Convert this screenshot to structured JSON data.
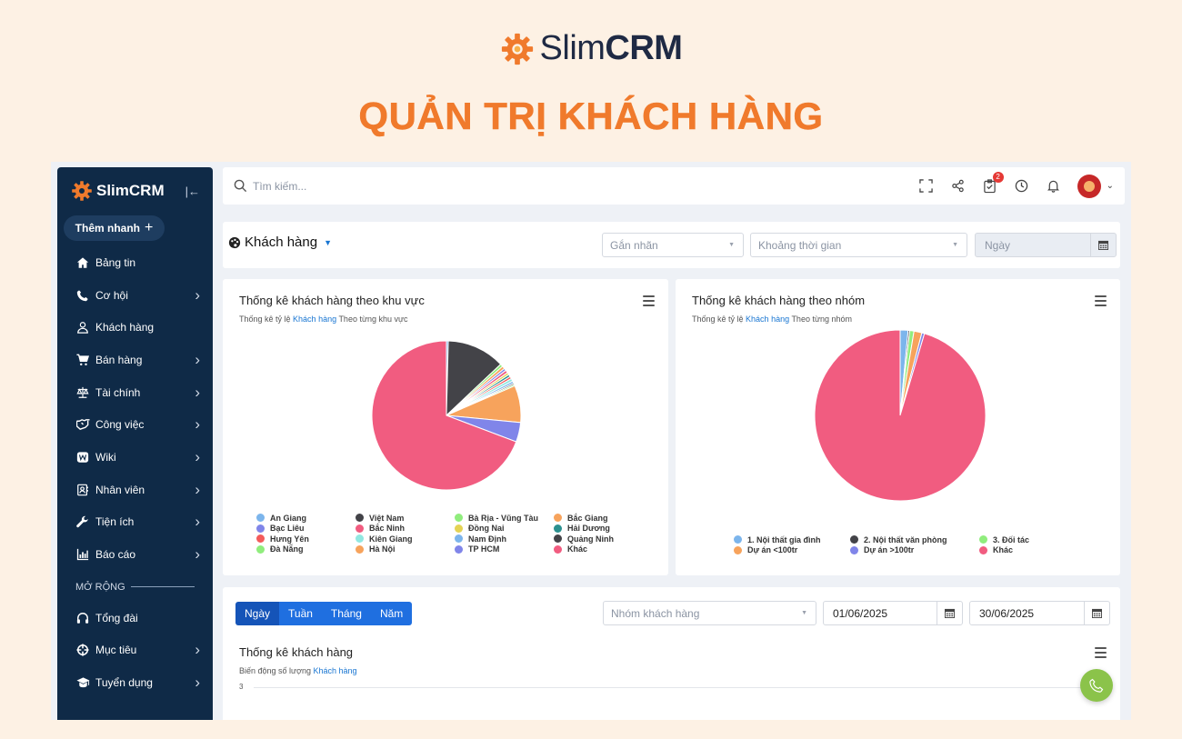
{
  "banner": {
    "brand_light": "Slim",
    "brand_bold": "CRM",
    "title": "QUẢN TRỊ KHÁCH HÀNG"
  },
  "sidebar": {
    "app_name": "SlimCRM",
    "quick_add": "Thêm nhanh",
    "items": [
      {
        "label": "Bảng tin",
        "icon": "home-icon",
        "has_children": false
      },
      {
        "label": "Cơ hội",
        "icon": "phone-icon",
        "has_children": true
      },
      {
        "label": "Khách hàng",
        "icon": "user-icon",
        "has_children": false
      },
      {
        "label": "Bán hàng",
        "icon": "cart-icon",
        "has_children": true
      },
      {
        "label": "Tài chính",
        "icon": "scale-icon",
        "has_children": true
      },
      {
        "label": "Công việc",
        "icon": "handshake-icon",
        "has_children": true
      },
      {
        "label": "Wiki",
        "icon": "wiki-icon",
        "has_children": true
      },
      {
        "label": "Nhân viên",
        "icon": "contact-card-icon",
        "has_children": true
      },
      {
        "label": "Tiện ích",
        "icon": "wrench-icon",
        "has_children": true
      },
      {
        "label": "Báo cáo",
        "icon": "bar-chart-icon",
        "has_children": true
      }
    ],
    "section_label": "MỞ RỘNG",
    "extra_items": [
      {
        "label": "Tổng đài",
        "icon": "headphones-icon",
        "has_children": false
      },
      {
        "label": "Mục tiêu",
        "icon": "target-icon",
        "has_children": true
      },
      {
        "label": "Tuyển dụng",
        "icon": "graduation-cap-icon",
        "has_children": true
      }
    ]
  },
  "topbar": {
    "search_placeholder": "Tìm kiếm...",
    "task_badge": "2"
  },
  "filterbar": {
    "page_title": "Khách hàng",
    "tag_placeholder": "Gắn nhãn",
    "period_placeholder": "Khoảng thời gian",
    "date_placeholder": "Ngày"
  },
  "region_card": {
    "title": "Thống kê khách hàng theo khu vực",
    "subtitle_pre": "Thống kê tỷ lệ",
    "subtitle_hl": "Khách hàng",
    "subtitle_post": "Theo từng khu vực"
  },
  "group_card": {
    "title": "Thống kê khách hàng theo nhóm",
    "subtitle_pre": "Thống kê tỷ lệ",
    "subtitle_hl": "Khách hàng",
    "subtitle_post": "Theo từng nhóm"
  },
  "trend_card": {
    "tabs": [
      "Ngày",
      "Tuần",
      "Tháng",
      "Năm"
    ],
    "active_tab": 0,
    "group_placeholder": "Nhóm khách hàng",
    "date_from": "01/06/2025",
    "date_to": "30/06/2025",
    "title": "Thống kê khách hàng",
    "subtitle_pre": "Biến động số lượng",
    "subtitle_hl": "Khách hàng",
    "y_tick": "3"
  },
  "chart_data": [
    {
      "type": "pie",
      "title": "Thống kê khách hàng theo khu vực",
      "legend_position": "bottom",
      "slices": [
        {
          "label": "An Giang",
          "value": 0.4,
          "color": "#7cb5ec"
        },
        {
          "label": "Việt Nam",
          "value": 12.5,
          "color": "#434348"
        },
        {
          "label": "Bà Rịa - Vũng Tàu",
          "value": 0.6,
          "color": "#90ed7d"
        },
        {
          "label": "Bắc Giang",
          "value": 0.6,
          "color": "#f7a35c"
        },
        {
          "label": "Bạc Liêu",
          "value": 0.5,
          "color": "#8085e9"
        },
        {
          "label": "Bắc Ninh",
          "value": 0.6,
          "color": "#f15c80"
        },
        {
          "label": "Đồng Nai",
          "value": 0.5,
          "color": "#e4d354"
        },
        {
          "label": "Hải Dương",
          "value": 0.5,
          "color": "#2b908f"
        },
        {
          "label": "Hưng Yên",
          "value": 0.5,
          "color": "#f45b5b"
        },
        {
          "label": "Kiên Giang",
          "value": 0.6,
          "color": "#91e8e1"
        },
        {
          "label": "Nam Định",
          "value": 0.5,
          "color": "#7cb5ec"
        },
        {
          "label": "Quảng Ninh",
          "value": 0.3,
          "color": "#434348"
        },
        {
          "label": "Đà Nẵng",
          "value": 0.3,
          "color": "#90ed7d"
        },
        {
          "label": "Hà Nội",
          "value": 8.0,
          "color": "#f7a35c"
        },
        {
          "label": "TP HCM",
          "value": 4.2,
          "color": "#8085e9"
        },
        {
          "label": "Khác",
          "value": 68.9,
          "color": "#f15c80"
        }
      ]
    },
    {
      "type": "pie",
      "title": "Thống kê khách hàng theo nhóm",
      "legend_position": "bottom",
      "slices": [
        {
          "label": "1. Nội thất gia đình",
          "value": 1.5,
          "color": "#7cb5ec"
        },
        {
          "label": "2. Nội thất văn phòng",
          "value": 0.3,
          "color": "#434348"
        },
        {
          "label": "3. Đối tác",
          "value": 0.8,
          "color": "#90ed7d"
        },
        {
          "label": "Dự án <100tr",
          "value": 1.5,
          "color": "#f7a35c"
        },
        {
          "label": "Dự án >100tr",
          "value": 0.5,
          "color": "#8085e9"
        },
        {
          "label": "Khác",
          "value": 95.4,
          "color": "#f15c80"
        }
      ]
    }
  ]
}
